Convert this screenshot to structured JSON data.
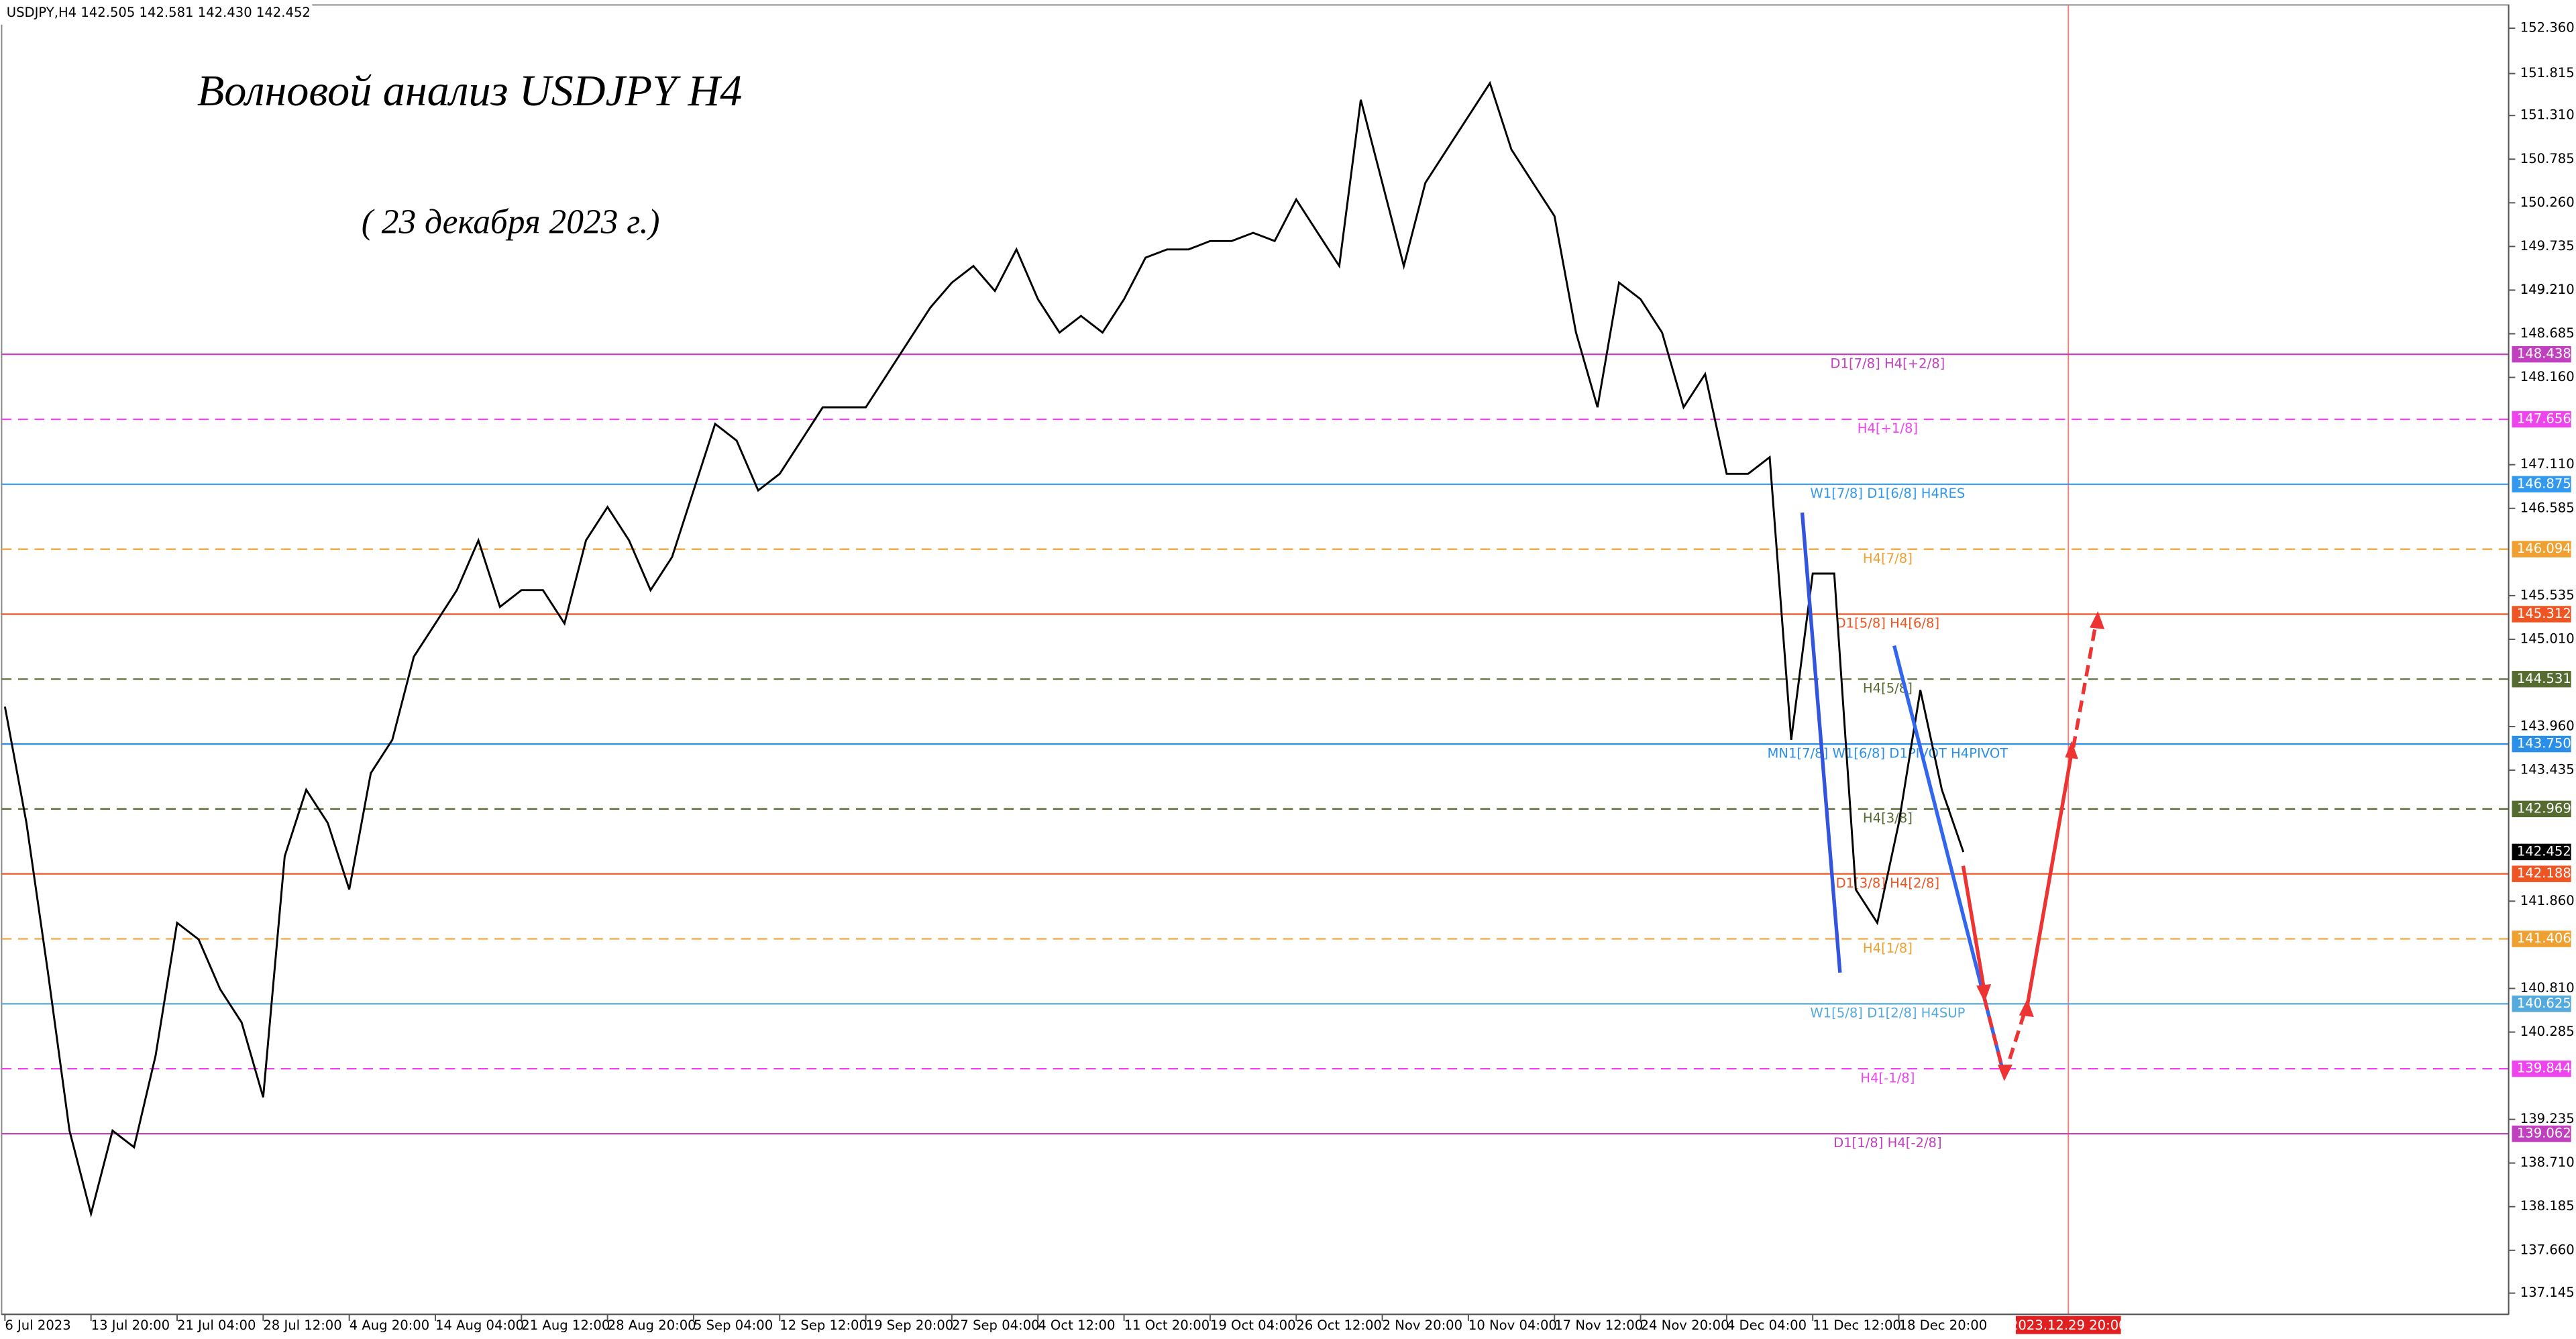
{
  "chart_data": {
    "type": "line",
    "header": "USDJPY,H4  142.505 142.581 142.430 142.452",
    "title": "Волновой анализ USDJPY H4",
    "subtitle": "( 23 декабря 2023 г.)",
    "cursor_label": "2023.12.29 20:00",
    "categories": [
      "6 Jul 2023",
      null,
      null,
      null,
      "13 Jul 20:00",
      null,
      null,
      null,
      "21 Jul 04:00",
      null,
      null,
      null,
      "28 Jul 12:00",
      null,
      null,
      null,
      "4 Aug 20:00",
      null,
      null,
      null,
      "14 Aug 04:00",
      null,
      null,
      null,
      "21 Aug 12:00",
      null,
      null,
      null,
      "28 Aug 20:00",
      null,
      null,
      null,
      "5 Sep 04:00",
      null,
      null,
      null,
      "12 Sep 12:00",
      null,
      null,
      null,
      "19 Sep 20:00",
      null,
      null,
      null,
      "27 Sep 04:00",
      null,
      null,
      null,
      "4 Oct 12:00",
      null,
      null,
      null,
      "11 Oct 20:00",
      null,
      null,
      null,
      "19 Oct 04:00",
      null,
      null,
      null,
      "26 Oct 12:00",
      null,
      null,
      null,
      "2 Nov 20:00",
      null,
      null,
      null,
      "10 Nov 04:00",
      null,
      null,
      null,
      "17 Nov 12:00",
      null,
      null,
      null,
      "24 Nov 20:00",
      null,
      null,
      null,
      "4 Dec 04:00",
      null,
      null,
      null,
      "11 Dec 12:00",
      null,
      null,
      null,
      "18 Dec 20:00",
      null,
      null,
      null
    ],
    "series": [
      {
        "name": "USDJPY,H4",
        "color": "#000000",
        "values": [
          144.2,
          142.8,
          141.0,
          139.1,
          138.1,
          139.1,
          138.9,
          140.0,
          141.6,
          141.4,
          140.8,
          140.4,
          139.5,
          142.4,
          143.2,
          142.8,
          142.0,
          143.4,
          143.8,
          144.8,
          145.2,
          145.6,
          146.2,
          145.4,
          145.6,
          145.6,
          145.2,
          146.2,
          146.6,
          146.2,
          145.6,
          146.0,
          146.8,
          147.6,
          147.4,
          146.8,
          147.0,
          147.4,
          147.8,
          147.8,
          147.8,
          148.2,
          148.6,
          149.0,
          149.3,
          149.5,
          149.2,
          149.7,
          149.1,
          148.7,
          148.9,
          148.7,
          149.1,
          149.6,
          149.7,
          149.7,
          149.8,
          149.8,
          149.9,
          149.8,
          150.3,
          149.9,
          149.5,
          151.5,
          150.5,
          149.5,
          150.5,
          150.9,
          151.3,
          151.7,
          150.9,
          150.5,
          150.1,
          148.7,
          147.8,
          149.3,
          149.1,
          148.7,
          147.8,
          148.2,
          147.0,
          147.0,
          147.2,
          143.8,
          145.8,
          145.8,
          142.0,
          141.6,
          142.8,
          144.4,
          143.2,
          142.45
        ]
      }
    ],
    "ylim": [
      136.89,
      152.64
    ],
    "yticks": [
      {
        "value": 152.36,
        "label": "152.360"
      },
      151.815,
      {
        "value": 151.31,
        "label": "151.310"
      },
      150.785,
      {
        "value": 150.26,
        "label": "150.260"
      },
      149.735,
      149.21,
      {
        "value": 149.21,
        "label": "149.210"
      },
      148.685,
      {
        "value": 148.16,
        "label": "148.160"
      },
      {
        "value": 147.11,
        "label": "147.110"
      },
      146.585,
      145.535,
      {
        "value": 145.01,
        "label": "145.010"
      },
      {
        "value": 143.96,
        "label": "143.960"
      },
      143.435,
      {
        "value": 141.86,
        "label": "141.860"
      },
      {
        "value": 140.81,
        "label": "140.810"
      },
      140.285,
      139.235,
      {
        "value": 138.71,
        "label": "138.710"
      },
      138.185,
      {
        "value": 137.66,
        "label": "137.660"
      },
      137.145
    ],
    "last_price": 142.452,
    "levels": [
      {
        "price": 148.438,
        "name": "D1[7/8] H4[+2/8]",
        "color": "#c040c0",
        "dashed": false
      },
      {
        "price": 147.656,
        "name": "H4[+1/8]",
        "color": "#ee44ee",
        "dashed": true
      },
      {
        "price": 146.875,
        "name": "W1[7/8] D1[6/8] H4RES",
        "color": "#3399ee",
        "dashed": false
      },
      {
        "price": 146.094,
        "name": "H4[7/8]",
        "color": "#f0a030",
        "dashed": true
      },
      {
        "price": 145.312,
        "name": "D1[5/8] H4[6/8]",
        "color": "#ee5522",
        "dashed": false
      },
      {
        "price": 144.531,
        "name": "H4[5/8]",
        "color": "#556b2f",
        "dashed": true
      },
      {
        "price": {
          "value": 143.75,
          "label": "143.750"
        },
        "name": "MN1[7/8] W1[6/8] D1PIVOT H4PIVOT",
        "color": "#2a8fe8",
        "dashed": false
      },
      {
        "price": 142.969,
        "name": "H4[3/8]",
        "color": "#556b2f",
        "dashed": true
      },
      {
        "price": 142.188,
        "name": "D1[3/8] H4[2/8]",
        "color": "#ee5522",
        "dashed": false
      },
      {
        "price": 141.406,
        "name": "H4[1/8]",
        "color": "#f0a030",
        "dashed": true
      },
      {
        "price": 140.625,
        "name": "W1[5/8] D1[2/8] H4SUP",
        "color": "#55aadd",
        "dashed": false
      },
      {
        "price": 139.844,
        "name": "H4[-1/8]",
        "color": "#ee44ee",
        "dashed": true
      },
      {
        "price": 139.062,
        "name": "D1[1/8] H4[-2/8]",
        "color": "#c040c0",
        "dashed": false
      }
    ]
  }
}
